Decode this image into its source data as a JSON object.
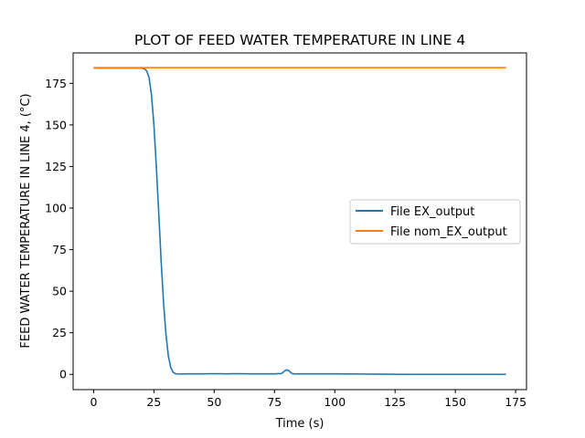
{
  "chart_data": {
    "type": "line",
    "title": "PLOT OF FEED WATER TEMPERATURE IN LINE 4",
    "xlabel": "Time (s)",
    "ylabel": "FEED WATER TEMPERATURE IN LINE 4, (°C)",
    "xlim": [
      -8.5,
      179.5
    ],
    "ylim": [
      -9.2,
      193.3
    ],
    "xticks": [
      0,
      25,
      50,
      75,
      100,
      125,
      150,
      175
    ],
    "yticks": [
      0,
      25,
      50,
      75,
      100,
      125,
      150,
      175
    ],
    "grid": false,
    "legend_position": "center-right",
    "series": [
      {
        "name": "File EX_output",
        "color": "#1f77b4",
        "x": [
          0,
          5,
          10,
          15,
          19,
          20,
          21,
          22,
          23,
          24,
          25,
          26,
          27,
          28,
          29,
          30,
          31,
          32,
          33,
          34,
          35,
          36,
          38,
          40,
          45,
          50,
          55,
          60,
          65,
          70,
          75,
          78,
          79,
          80,
          81,
          82,
          83,
          85,
          90,
          100,
          110,
          120,
          130,
          140,
          150,
          160,
          171
        ],
        "y": [
          184.2,
          184.2,
          184.2,
          184.2,
          184.2,
          184.1,
          183.8,
          182.5,
          178.5,
          168,
          150,
          125,
          97,
          68,
          43,
          24,
          11,
          4,
          1.2,
          0.4,
          0.2,
          0.2,
          0.3,
          0.3,
          0.3,
          0.4,
          0.3,
          0.4,
          0.3,
          0.3,
          0.3,
          0.5,
          1.8,
          2.7,
          2.2,
          0.7,
          0.3,
          0.3,
          0.3,
          0.3,
          0.2,
          0.1,
          0.0,
          0.0,
          0.0,
          0.0,
          0.0
        ]
      },
      {
        "name": "File nom_EX_output",
        "color": "#ff7f0e",
        "x": [
          0,
          171
        ],
        "y": [
          184.4,
          184.4
        ]
      }
    ]
  }
}
